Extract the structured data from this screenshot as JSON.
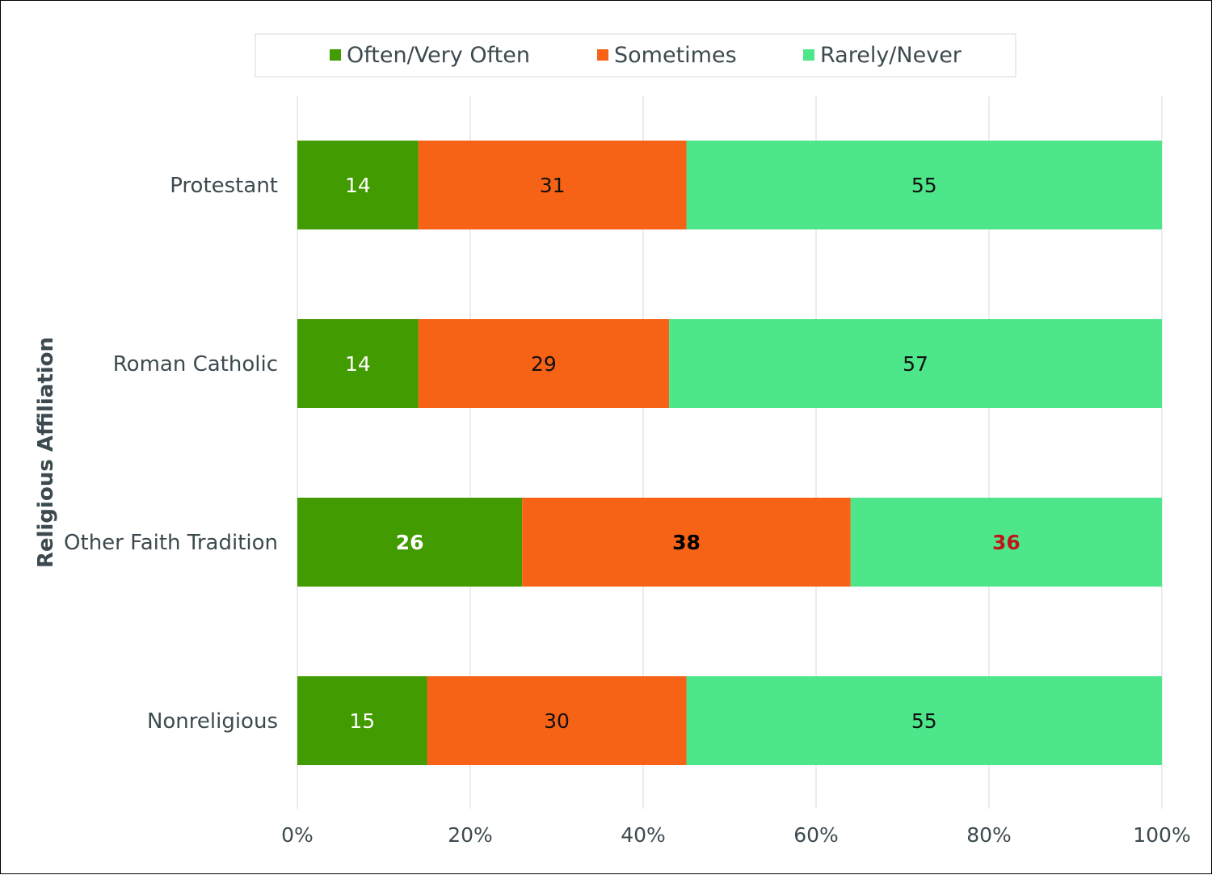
{
  "chart_data": {
    "type": "bar",
    "orientation": "horizontal",
    "stacked": true,
    "ylabel": "Religious Affiliation",
    "xlabel": "",
    "xlim": [
      0,
      100
    ],
    "x_ticks": [
      {
        "value": 0,
        "label": "0%"
      },
      {
        "value": 20,
        "label": "20%"
      },
      {
        "value": 40,
        "label": "40%"
      },
      {
        "value": 60,
        "label": "60%"
      },
      {
        "value": 80,
        "label": "80%"
      },
      {
        "value": 100,
        "label": "100%"
      }
    ],
    "grid": true,
    "legend_position": "top",
    "categories": [
      "Protestant",
      "Roman Catholic",
      "Other Faith Tradition",
      "Nonreligious"
    ],
    "series": [
      {
        "name": "Often/Very Often",
        "color": "#429B00",
        "values": [
          14,
          14,
          26,
          15
        ],
        "label_color": "#ffffff"
      },
      {
        "name": "Sometimes",
        "color": "#F66216",
        "values": [
          31,
          29,
          38,
          30
        ],
        "label_color": "#111111"
      },
      {
        "name": "Rarely/Never",
        "color": "#4EE68A",
        "values": [
          55,
          57,
          36,
          55
        ],
        "label_color": "#111111"
      }
    ],
    "highlight": {
      "category_index": 2,
      "bold": true,
      "label_colors": [
        "#ffffff",
        "#000000",
        "#C0161A"
      ]
    }
  }
}
